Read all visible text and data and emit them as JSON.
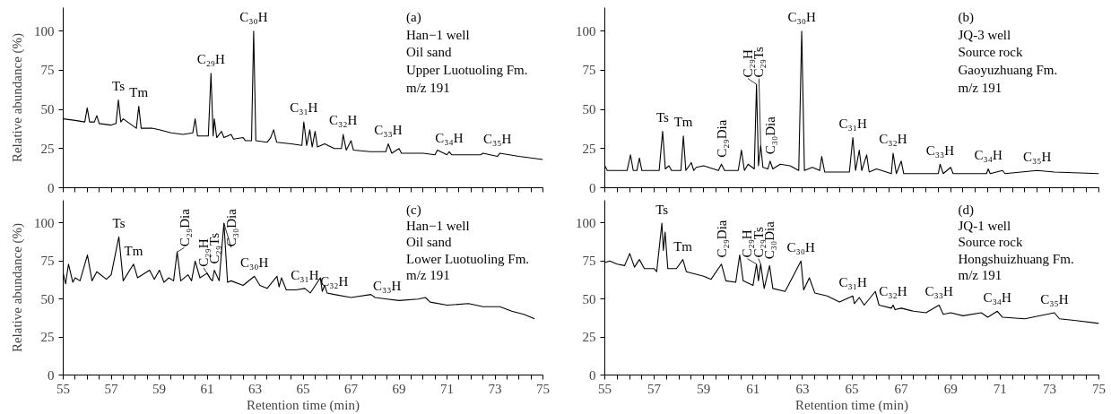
{
  "chart_data": [
    {
      "type": "line",
      "ylabel": "Relative abundance (%)",
      "xlim": [
        55,
        75
      ],
      "ylim": [
        0,
        115
      ],
      "yticks": [
        0,
        25,
        50,
        75,
        100
      ],
      "xticks": [
        55,
        {
          "value": 55.5,
          "label": null
        },
        56,
        {
          "value": 56.5,
          "label": null
        },
        57,
        {
          "value": 57.5,
          "label": null
        },
        58,
        {
          "value": 58.5,
          "label": null
        },
        59,
        {
          "value": 59.5,
          "label": null
        },
        60,
        {
          "value": 60.5,
          "label": null
        },
        61,
        {
          "value": 61.5,
          "label": null
        },
        62,
        {
          "value": 62.5,
          "label": null
        },
        63,
        {
          "value": 63.5,
          "label": null
        },
        64,
        {
          "value": 64.5,
          "label": null
        },
        65,
        {
          "value": 65.5,
          "label": null
        },
        66,
        {
          "value": 66.5,
          "label": null
        },
        67,
        {
          "value": 67.5,
          "label": null
        },
        68,
        {
          "value": 68.5,
          "label": null
        },
        69,
        {
          "value": 69.5,
          "label": null
        },
        70,
        {
          "value": 70.5,
          "label": null
        },
        71,
        {
          "value": 71.5,
          "label": null
        },
        72,
        {
          "value": 72.5,
          "label": null
        },
        73,
        {
          "value": 73.5,
          "label": null
        },
        74,
        {
          "value": 74.5,
          "label": null
        },
        75
      ],
      "tick_labels": "y",
      "grid": false,
      "marker": "none",
      "line_style": "solid",
      "series": [
        {
          "color": "#000000",
          "x": [
            55,
            55.5,
            55.9,
            56.0,
            56.1,
            56.3,
            56.4,
            56.5,
            57.0,
            57.2,
            57.3,
            57.4,
            57.5,
            58.05,
            58.15,
            58.25,
            58.7,
            59.0,
            59.5,
            60.0,
            60.4,
            60.5,
            60.6,
            61.05,
            61.16,
            61.25,
            61.3,
            61.4,
            61.6,
            61.7,
            62.0,
            62.1,
            62.5,
            62.6,
            62.85,
            62.94,
            63.03,
            63.5,
            63.65,
            63.77,
            63.9,
            64.5,
            64.95,
            65.03,
            65.15,
            65.28,
            65.38,
            65.5,
            65.6,
            65.9,
            66.3,
            66.6,
            66.67,
            66.8,
            67.0,
            67.1,
            67.8,
            68.45,
            68.55,
            68.7,
            69.0,
            69.1,
            70.0,
            70.5,
            70.6,
            71.0,
            71.09,
            71.2,
            72.4,
            72.5,
            73.1,
            73.2,
            74.0,
            75
          ],
          "values": [
            44,
            43,
            42,
            51,
            42,
            42,
            46,
            41,
            40,
            41,
            56,
            42,
            44,
            38,
            52,
            38,
            38,
            37,
            35,
            34,
            35,
            44,
            33,
            33,
            73,
            33,
            44,
            32,
            36,
            32,
            34,
            31,
            32,
            30,
            30,
            100,
            30,
            29,
            32,
            37,
            29,
            28,
            27,
            42,
            27,
            37,
            26,
            36,
            26,
            28,
            25,
            25,
            34,
            24,
            30,
            24,
            23,
            23,
            28,
            22,
            25,
            22,
            22,
            21,
            24,
            21,
            23,
            21,
            21,
            22,
            20,
            22,
            20,
            18
          ]
        }
      ],
      "annotations": [
        {
          "text": "Ts",
          "x": 57.3,
          "y": 56
        },
        {
          "text": "Tm",
          "x": 58.15,
          "y": 52
        },
        {
          "text": "C₂₉H",
          "x": 61.16,
          "y": 73
        },
        {
          "text": "C₃₀H",
          "x": 62.94,
          "y": 100
        },
        {
          "text": "C₃₁H",
          "x": 65.03,
          "y": 42
        },
        {
          "text": "C₃₂H",
          "x": 66.67,
          "y": 34
        },
        {
          "text": "C₃₃H",
          "x": 68.55,
          "y": 28
        },
        {
          "text": "C₃₄H",
          "x": 71.09,
          "y": 23
        },
        {
          "text": "C₃₅H",
          "x": 73.1,
          "y": 22
        },
        "(a)",
        "Han−1  well",
        "Oil sand",
        "Upper Luotuoling Fm.",
        "m/z 191"
      ]
    },
    {
      "type": "line",
      "xlim": [
        55,
        75
      ],
      "ylim": [
        0,
        115
      ],
      "yticks": [
        0,
        25,
        50,
        75,
        100
      ],
      "xticks": [
        55,
        {
          "value": 55.5,
          "label": null
        },
        56,
        {
          "value": 56.5,
          "label": null
        },
        57,
        {
          "value": 57.5,
          "label": null
        },
        58,
        {
          "value": 58.5,
          "label": null
        },
        59,
        {
          "value": 59.5,
          "label": null
        },
        60,
        {
          "value": 60.5,
          "label": null
        },
        61,
        {
          "value": 61.5,
          "label": null
        },
        62,
        {
          "value": 62.5,
          "label": null
        },
        63,
        {
          "value": 63.5,
          "label": null
        },
        64,
        {
          "value": 64.5,
          "label": null
        },
        65,
        {
          "value": 65.5,
          "label": null
        },
        66,
        {
          "value": 66.5,
          "label": null
        },
        67,
        {
          "value": 67.5,
          "label": null
        },
        68,
        {
          "value": 68.5,
          "label": null
        },
        69,
        {
          "value": 69.5,
          "label": null
        },
        70,
        {
          "value": 70.5,
          "label": null
        },
        71,
        {
          "value": 71.5,
          "label": null
        },
        72,
        {
          "value": 72.5,
          "label": null
        },
        73,
        {
          "value": 73.5,
          "label": null
        },
        74,
        {
          "value": 74.5,
          "label": null
        },
        75
      ],
      "tick_labels": "y",
      "grid": false,
      "marker": "none",
      "line_style": "solid",
      "series": [
        {
          "color": "#000000",
          "x": [
            55,
            55.1,
            55.9,
            56.04,
            56.15,
            56.3,
            56.4,
            56.5,
            57.2,
            57.34,
            57.45,
            57.6,
            57.7,
            58.08,
            58.18,
            58.28,
            58.5,
            58.6,
            58.7,
            59.0,
            59.6,
            59.72,
            59.85,
            60.4,
            60.53,
            60.65,
            60.8,
            61.05,
            61.14,
            61.22,
            61.31,
            61.4,
            61.6,
            61.69,
            61.8,
            62.1,
            62.5,
            62.85,
            62.97,
            63.08,
            63.4,
            63.7,
            63.78,
            63.9,
            64.9,
            65.04,
            65.15,
            65.3,
            65.4,
            65.6,
            65.7,
            66.0,
            66.6,
            66.67,
            66.8,
            67.0,
            67.1,
            68.5,
            68.57,
            68.7,
            69.0,
            69.1,
            70.45,
            70.52,
            70.6,
            71.1,
            71.2,
            72.5,
            73.2,
            75
          ],
          "values": [
            14,
            11,
            11,
            21,
            11,
            11,
            19,
            11,
            11,
            36,
            12,
            14,
            11,
            11,
            33,
            11,
            16,
            11,
            13,
            14,
            11,
            15,
            11,
            11,
            24,
            11,
            15,
            12,
            66,
            14,
            27,
            13,
            12,
            17,
            12,
            15,
            14,
            11,
            100,
            11,
            13,
            11,
            20,
            10,
            10,
            32,
            11,
            24,
            11,
            21,
            10,
            12,
            9,
            22,
            9,
            17,
            9,
            9,
            15,
            9,
            13,
            9,
            9,
            12,
            9,
            11,
            9,
            11,
            10,
            9
          ]
        }
      ],
      "annotations": [
        {
          "text": "Ts",
          "x": 57.34,
          "y": 36
        },
        {
          "text": "Tm",
          "x": 58.18,
          "y": 33
        },
        {
          "text": "C₂₉Dia",
          "x": 59.72,
          "y": 15
        },
        {
          "text": "C₂₉H",
          "x": 61.14,
          "y": 66
        },
        {
          "text": "C₂₉Ts",
          "x": 61.31,
          "y": 27
        },
        {
          "text": "C₃₀Dia",
          "x": 61.69,
          "y": 17
        },
        {
          "text": "C₃₀H",
          "x": 62.97,
          "y": 100
        },
        {
          "text": "C₃₁H",
          "x": 65.04,
          "y": 32
        },
        {
          "text": "C₃₂H",
          "x": 66.67,
          "y": 22
        },
        {
          "text": "C₃₃H",
          "x": 68.57,
          "y": 15
        },
        {
          "text": "C₃₄H",
          "x": 70.52,
          "y": 12
        },
        {
          "text": "C₃₅H",
          "x": 72.5,
          "y": 11
        },
        "(b)",
        "JQ-3 well",
        "Source rock",
        "Gaoyuzhuang Fm.",
        "m/z 191"
      ]
    },
    {
      "type": "line",
      "ylabel": "Relative abundance (%)",
      "xlabel": "Retention time (min)",
      "xlim": [
        55,
        75
      ],
      "ylim": [
        0,
        115
      ],
      "yticks": [
        0,
        25,
        50,
        75,
        100
      ],
      "xticks": [
        55,
        {
          "value": 55.5,
          "label": null
        },
        57,
        {
          "value": 56.5,
          "label": null
        },
        {
          "value": 56,
          "label": null
        },
        {
          "value": 57.5,
          "label": null
        },
        {
          "value": 58,
          "label": null
        },
        {
          "value": 58.5,
          "label": null
        },
        59,
        {
          "value": 59.5,
          "label": null
        },
        {
          "value": 60,
          "label": null
        },
        {
          "value": 60.5,
          "label": null
        },
        61,
        {
          "value": 61.5,
          "label": null
        },
        {
          "value": 62,
          "label": null
        },
        {
          "value": 62.5,
          "label": null
        },
        63,
        {
          "value": 63.5,
          "label": null
        },
        {
          "value": 64,
          "label": null
        },
        {
          "value": 64.5,
          "label": null
        },
        65,
        {
          "value": 65.5,
          "label": null
        },
        {
          "value": 66,
          "label": null
        },
        {
          "value": 66.5,
          "label": null
        },
        67,
        {
          "value": 67.5,
          "label": null
        },
        {
          "value": 68,
          "label": null
        },
        {
          "value": 68.5,
          "label": null
        },
        69,
        {
          "value": 69.5,
          "label": null
        },
        {
          "value": 70,
          "label": null
        },
        {
          "value": 70.5,
          "label": null
        },
        71,
        {
          "value": 71.5,
          "label": null
        },
        {
          "value": 72,
          "label": null
        },
        {
          "value": 72.5,
          "label": null
        },
        73,
        {
          "value": 73.5,
          "label": null
        },
        {
          "value": 74,
          "label": null
        },
        {
          "value": 74.5,
          "label": null
        },
        75
      ],
      "grid": false,
      "marker": "none",
      "line_style": "solid",
      "series": [
        {
          "color": "#000000",
          "x": [
            55,
            55.1,
            55.22,
            55.4,
            55.5,
            55.7,
            56.01,
            56.2,
            56.4,
            56.8,
            57.0,
            57.32,
            57.5,
            57.93,
            58.1,
            58.6,
            58.8,
            59.01,
            59.2,
            59.4,
            59.6,
            59.75,
            59.9,
            60.2,
            60.35,
            60.5,
            60.7,
            61.0,
            61.15,
            61.22,
            61.3,
            61.5,
            61.7,
            61.85,
            62.0,
            62.5,
            62.97,
            63.2,
            63.5,
            63.91,
            64.0,
            64.1,
            64.3,
            64.7,
            65.07,
            65.3,
            65.72,
            65.8,
            65.9,
            66.0,
            66.3,
            67.0,
            67.83,
            68.0,
            68.5,
            69.0,
            69.8,
            70.1,
            70.3,
            71.0,
            71.9,
            72.5,
            73.2,
            73.7,
            74.2,
            74.65
          ],
          "values": [
            67,
            60,
            73,
            61,
            64,
            62,
            79,
            62,
            68,
            63,
            66,
            91,
            62,
            73,
            64,
            69,
            63,
            69,
            61,
            64,
            62,
            81,
            62,
            66,
            62,
            75,
            64,
            67,
            63,
            62,
            69,
            62,
            100,
            61,
            62,
            59,
            65,
            59,
            57,
            65,
            58,
            64,
            56,
            56,
            57,
            54,
            64,
            55,
            59,
            54,
            53,
            51,
            53,
            51,
            50,
            49,
            50,
            51,
            48,
            46,
            47,
            45,
            45,
            42,
            40,
            37
          ]
        }
      ],
      "annotations": [
        {
          "text": "Ts",
          "x": 57.32,
          "y": 91
        },
        {
          "text": "Tm",
          "x": 57.93,
          "y": 73
        },
        {
          "text": "C₂₉Dia",
          "x": 59.75,
          "y": 81
        },
        {
          "text": "C₂₉H",
          "x": 61.15,
          "y": 63
        },
        {
          "text": "C₂₉Ts",
          "x": 61.3,
          "y": 69
        },
        {
          "text": "C₃₀Dia",
          "x": 61.7,
          "y": 100
        },
        {
          "text": "C₃₀H",
          "x": 62.97,
          "y": 65
        },
        {
          "text": "C₃₁H",
          "x": 65.07,
          "y": 57
        },
        {
          "text": "C₃₂H",
          "x": 66.3,
          "y": 53
        },
        {
          "text": "C₃₃H",
          "x": 68.5,
          "y": 50
        },
        "(c)",
        "Han−1  well",
        "Oil sand",
        "Lower Luotuoling Fm.",
        "m/z 191"
      ]
    },
    {
      "type": "line",
      "xlabel": "Retention time (min)",
      "xlim": [
        55,
        75
      ],
      "ylim": [
        0,
        115
      ],
      "yticks": [
        0,
        25,
        50,
        75,
        100
      ],
      "xticks": [
        55,
        {
          "value": 55.5,
          "label": null
        },
        {
          "value": 56,
          "label": null
        },
        {
          "value": 56.5,
          "label": null
        },
        57,
        {
          "value": 57.5,
          "label": null
        },
        {
          "value": 58,
          "label": null
        },
        {
          "value": 58.5,
          "label": null
        },
        59,
        {
          "value": 59.5,
          "label": null
        },
        {
          "value": 60,
          "label": null
        },
        {
          "value": 60.5,
          "label": null
        },
        61,
        {
          "value": 61.5,
          "label": null
        },
        {
          "value": 62,
          "label": null
        },
        {
          "value": 62.5,
          "label": null
        },
        63,
        {
          "value": 63.5,
          "label": null
        },
        {
          "value": 64,
          "label": null
        },
        {
          "value": 64.5,
          "label": null
        },
        65,
        {
          "value": 65.5,
          "label": null
        },
        {
          "value": 66,
          "label": null
        },
        {
          "value": 66.5,
          "label": null
        },
        67,
        {
          "value": 67.5,
          "label": null
        },
        {
          "value": 68,
          "label": null
        },
        {
          "value": 68.5,
          "label": null
        },
        69,
        {
          "value": 69.5,
          "label": null
        },
        {
          "value": 70,
          "label": null
        },
        {
          "value": 70.5,
          "label": null
        },
        71,
        {
          "value": 71.5,
          "label": null
        },
        {
          "value": 72,
          "label": null
        },
        {
          "value": 72.5,
          "label": null
        },
        73,
        {
          "value": 73.5,
          "label": null
        },
        {
          "value": 74,
          "label": null
        },
        {
          "value": 74.5,
          "label": null
        },
        75
      ],
      "grid": false,
      "marker": "none",
      "line_style": "solid",
      "series": [
        {
          "color": "#000000",
          "x": [
            55,
            55.2,
            55.5,
            55.8,
            56.01,
            56.2,
            56.4,
            56.6,
            57.0,
            57.1,
            57.31,
            57.37,
            57.44,
            57.55,
            57.9,
            58.16,
            58.3,
            59.0,
            59.3,
            59.72,
            59.9,
            60.3,
            60.46,
            60.6,
            61.0,
            61.14,
            61.22,
            61.31,
            61.45,
            61.67,
            61.8,
            62.3,
            62.94,
            63.05,
            63.28,
            63.5,
            64.0,
            64.5,
            65.04,
            65.1,
            65.3,
            65.5,
            65.95,
            66.1,
            66.6,
            66.67,
            66.75,
            67.0,
            67.5,
            68.0,
            68.53,
            68.7,
            69.0,
            69.5,
            70.24,
            70.5,
            70.89,
            71.1,
            72.0,
            73.2,
            73.4,
            74.0,
            75
          ],
          "values": [
            74,
            75,
            73,
            72,
            80,
            71,
            76,
            70,
            70,
            68,
            100,
            82,
            94,
            70,
            70,
            76,
            68,
            65,
            63,
            73,
            62,
            61,
            79,
            62,
            59,
            73,
            62,
            73,
            57,
            72,
            57,
            55,
            75,
            56,
            64,
            54,
            52,
            48,
            52,
            47,
            51,
            46,
            55,
            46,
            44,
            46,
            43,
            44,
            42,
            41,
            46,
            40,
            41,
            39,
            41,
            38,
            42,
            38,
            37,
            41,
            37,
            36,
            34
          ]
        }
      ],
      "annotations": [
        {
          "text": "Ts",
          "x": 57.31,
          "y": 100
        },
        {
          "text": "Tm",
          "x": 58.16,
          "y": 76
        },
        {
          "text": "C₂₉Dia",
          "x": 59.72,
          "y": 73
        },
        {
          "text": "C₂₉H",
          "x": 61.14,
          "y": 73
        },
        {
          "text": "C₂₉Ts",
          "x": 61.31,
          "y": 73
        },
        {
          "text": "C₃₀Dia",
          "x": 61.67,
          "y": 72
        },
        {
          "text": "C₃₀H",
          "x": 62.94,
          "y": 75
        },
        {
          "text": "C₃₁H",
          "x": 65.04,
          "y": 52
        },
        {
          "text": "C₃₂H",
          "x": 66.67,
          "y": 46
        },
        {
          "text": "C₃₃H",
          "x": 68.53,
          "y": 46
        },
        {
          "text": "C₃₄H",
          "x": 70.89,
          "y": 42
        },
        {
          "text": "C₃₅H",
          "x": 73.2,
          "y": 41
        },
        "(d)",
        "JQ-1 well",
        "Source rock",
        "Hongshuizhuang Fm.",
        "m/z 191"
      ]
    }
  ]
}
